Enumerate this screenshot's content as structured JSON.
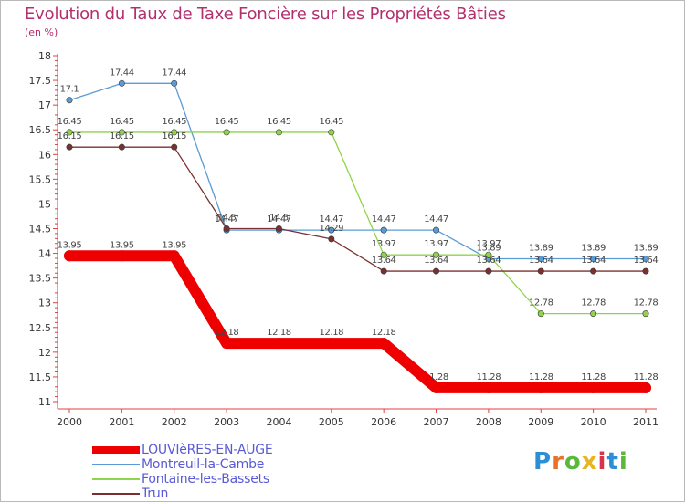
{
  "header": {
    "title": "Evolution du Taux de Taxe Foncière sur les Propriétés Bâties",
    "subtitle": "(en %)"
  },
  "logo": {
    "text": "Proxiti",
    "letters": [
      "P",
      "r",
      "o",
      "x",
      "i",
      "t",
      "i"
    ],
    "colors": [
      "#2c8fd6",
      "#e8722a",
      "#5cb83a",
      "#e8b520",
      "#d8334a",
      "#2c8fd6",
      "#5cb83a"
    ]
  },
  "chart_data": {
    "type": "line",
    "title": "Evolution du Taux de Taxe Foncière sur les Propriétés Bâties",
    "ylabel": "(en %)",
    "xlabel": "",
    "ylim": [
      11,
      18
    ],
    "yticks": [
      "11",
      "11.5",
      "12",
      "12.5",
      "13",
      "13.5",
      "14",
      "14.5",
      "15",
      "15.5",
      "16",
      "16.5",
      "17",
      "17.5",
      "18"
    ],
    "x": [
      "2000",
      "2001",
      "2002",
      "2003",
      "2004",
      "2005",
      "2006",
      "2007",
      "2008",
      "2009",
      "2010",
      "2011"
    ],
    "grid": false,
    "legend_position": "bottom-left",
    "series": [
      {
        "name": "LOUVIèRES-EN-AUGE",
        "color": "#ee0000",
        "values": [
          13.95,
          13.95,
          13.95,
          12.18,
          12.18,
          12.18,
          12.18,
          11.28,
          11.28,
          11.28,
          11.28,
          11.28
        ],
        "labels": [
          "13.95",
          "13.95",
          "13.95",
          "12.18",
          "12.18",
          "12.18",
          "12.18",
          "11.28",
          "11.28",
          "11.28",
          "11.28",
          "11.28"
        ]
      },
      {
        "name": "Montreuil-la-Cambe",
        "color": "#5b9bd5",
        "values": [
          17.1,
          17.44,
          17.44,
          14.47,
          14.47,
          14.47,
          14.47,
          14.47,
          13.89,
          13.89,
          13.89,
          13.89
        ],
        "labels": [
          "17.1",
          "17.44",
          "17.44",
          "14.47",
          "14.47",
          "14.47",
          "14.47",
          "14.47",
          "13.89",
          "13.89",
          "13.89",
          "13.89"
        ]
      },
      {
        "name": "Fontaine-les-Bassets",
        "color": "#8fd44a",
        "values": [
          16.45,
          16.45,
          16.45,
          16.45,
          16.45,
          16.45,
          13.97,
          13.97,
          13.97,
          12.78,
          12.78,
          12.78
        ],
        "labels": [
          "16.45",
          "16.45",
          "16.45",
          "16.45",
          "16.45",
          "16.45",
          "13.97",
          "13.97",
          "13.97",
          "12.78",
          "12.78",
          "12.78"
        ]
      },
      {
        "name": "Trun",
        "color": "#7a3030",
        "values": [
          16.15,
          16.15,
          16.15,
          14.5,
          14.5,
          14.29,
          13.64,
          13.64,
          13.64,
          13.64,
          13.64,
          13.64
        ],
        "labels": [
          "16.15",
          "16.15",
          "16.15",
          "14.5",
          "14.5",
          "14.29",
          "13.64",
          "13.64",
          "13.64",
          "13.64",
          "13.64",
          "13.64"
        ]
      }
    ]
  }
}
